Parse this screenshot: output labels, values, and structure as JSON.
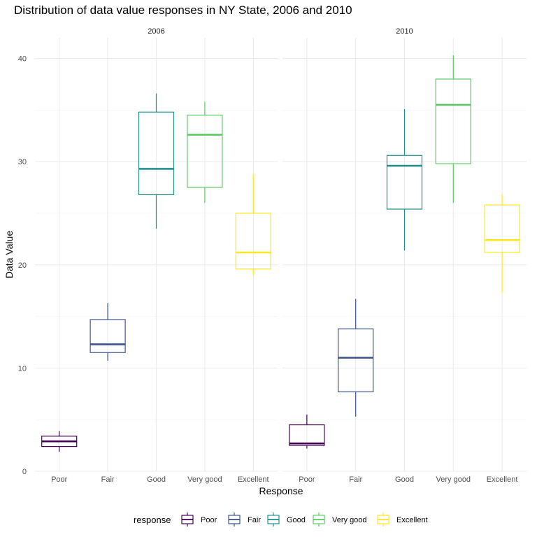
{
  "chart_data": {
    "type": "boxplot",
    "title": "Distribution of data value responses in NY State, 2006 and 2010",
    "xlabel": "Response",
    "ylabel": "Data Value",
    "ylim": [
      0,
      42
    ],
    "yticks": [
      0,
      10,
      20,
      30,
      40
    ],
    "grid": true,
    "legend_position": "bottom",
    "legend_title": "response",
    "categories": [
      "Poor",
      "Fair",
      "Good",
      "Very good",
      "Excellent"
    ],
    "colors": {
      "Poor": "#440154",
      "Fair": "#3b528b",
      "Good": "#21908c",
      "Very good": "#5dc863",
      "Excellent": "#fde725"
    },
    "facets": [
      {
        "label": "2006",
        "boxes": [
          {
            "category": "Poor",
            "min": 1.9,
            "q1": 2.4,
            "median": 2.9,
            "q3": 3.4,
            "max": 3.9
          },
          {
            "category": "Fair",
            "min": 10.7,
            "q1": 11.5,
            "median": 12.3,
            "q3": 14.7,
            "max": 16.3
          },
          {
            "category": "Good",
            "min": 23.5,
            "q1": 26.8,
            "median": 29.3,
            "q3": 34.8,
            "max": 36.6
          },
          {
            "category": "Very good",
            "min": 26.0,
            "q1": 27.5,
            "median": 32.6,
            "q3": 34.5,
            "max": 35.8
          },
          {
            "category": "Excellent",
            "min": 19.0,
            "q1": 19.6,
            "median": 21.2,
            "q3": 25.0,
            "max": 28.8
          }
        ]
      },
      {
        "label": "2010",
        "boxes": [
          {
            "category": "Poor",
            "min": 2.2,
            "q1": 2.5,
            "median": 2.7,
            "q3": 4.5,
            "max": 5.5
          },
          {
            "category": "Fair",
            "min": 5.3,
            "q1": 7.7,
            "median": 11.0,
            "q3": 13.8,
            "max": 16.7
          },
          {
            "category": "Good",
            "min": 21.4,
            "q1": 25.4,
            "median": 29.6,
            "q3": 30.6,
            "max": 35.1
          },
          {
            "category": "Very good",
            "min": 26.0,
            "q1": 29.8,
            "median": 35.5,
            "q3": 38.0,
            "max": 40.3
          },
          {
            "category": "Excellent",
            "min": 17.3,
            "q1": 21.2,
            "median": 22.4,
            "q3": 25.8,
            "max": 26.8
          }
        ]
      }
    ]
  }
}
